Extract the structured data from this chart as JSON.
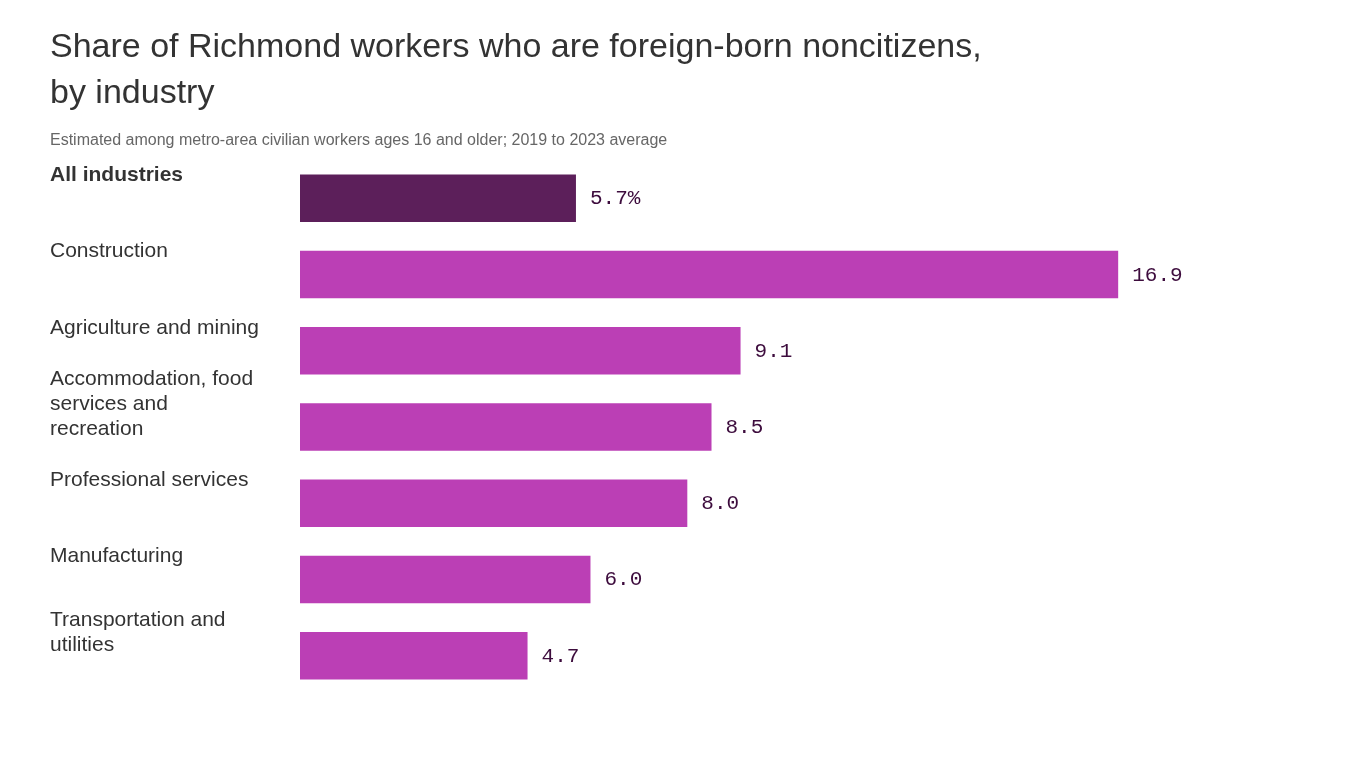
{
  "chart_data": {
    "type": "bar",
    "orientation": "horizontal",
    "title": "Share of Richmond workers who are foreign-born noncitizens, by industry",
    "subtitle": "Estimated among metro-area civilian workers ages 16 and older; 2019 to 2023 average",
    "categories": [
      "All industries",
      "Construction",
      "Agriculture and mining",
      "Accommodation, food services and recreation",
      "Professional services",
      "Manufacturing",
      "Transportation and utilities"
    ],
    "values": [
      5.7,
      16.9,
      9.1,
      8.5,
      8.0,
      6.0,
      4.7
    ],
    "colors": [
      "#5c1f5a",
      "#bb3fb5",
      "#bb3fb5",
      "#bb3fb5",
      "#bb3fb5",
      "#bb3fb5",
      "#bb3fb5"
    ],
    "value_labels": [
      "5.7%",
      "16.9",
      "9.1",
      "8.5",
      "8.0",
      "6.0",
      "4.7"
    ]
  }
}
